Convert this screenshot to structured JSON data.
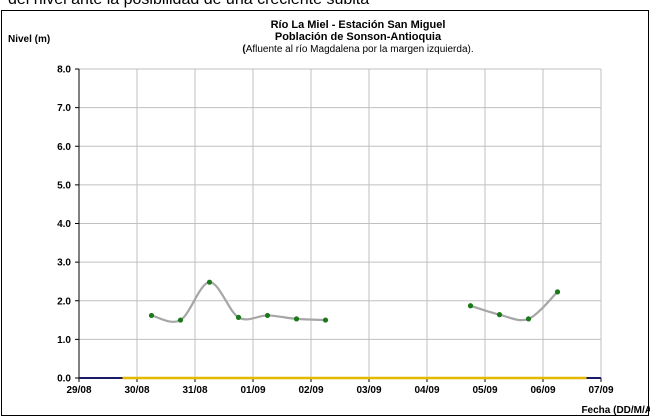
{
  "page": {
    "top_caption": "del nivel ante la posibilidad de una creciente súbita"
  },
  "chart_data": {
    "type": "line",
    "title": "Río La Miel  - Estación San Miguel",
    "subtitle": "Población de Sonson-Antioquia",
    "subtitle2_paren_open": "(",
    "subtitle2_text": "Afluente al río Magdalena por la margen izquierda).",
    "ylabel": "Nivel (m)",
    "xlabel": "Fecha (DD/M/AA)",
    "ylim": [
      0,
      8
    ],
    "xlim": [
      "29/08 00:00",
      "07/09 00:00"
    ],
    "yticks": [
      "0.0",
      "1.0",
      "2.0",
      "3.0",
      "4.0",
      "5.0",
      "6.0",
      "7.0",
      "8.0"
    ],
    "xticks": [
      "29/08",
      "30/08",
      "31/08",
      "01/09",
      "02/09",
      "03/09",
      "04/09",
      "05/09",
      "06/09",
      "07/09"
    ],
    "grid": true,
    "series": [
      {
        "segments": [
          [
            {
              "x": "30/08 06:00",
              "y": 1.62
            },
            {
              "x": "30/08 18:00",
              "y": 1.5
            },
            {
              "x": "31/08 06:00",
              "y": 2.48
            },
            {
              "x": "31/08 18:00",
              "y": 1.57
            },
            {
              "x": "01/09 06:00",
              "y": 1.62
            },
            {
              "x": "01/09 18:00",
              "y": 1.53
            },
            {
              "x": "02/09 06:00",
              "y": 1.5
            }
          ],
          [
            {
              "x": "04/09 18:00",
              "y": 1.87
            },
            {
              "x": "05/09 06:00",
              "y": 1.64
            },
            {
              "x": "05/09 18:00",
              "y": 1.53
            },
            {
              "x": "06/09 06:00",
              "y": 2.23
            }
          ]
        ]
      }
    ],
    "baseline": {
      "x_start": "29/08 18:00",
      "x_end": "06/09 18:00",
      "y": 0.0
    },
    "colors": {
      "line": "#a6a6a6",
      "marker": "#1a7a1a",
      "grid": "#c0c0c0",
      "baseline": "#e5b800",
      "axis": "#1a1a66"
    }
  }
}
